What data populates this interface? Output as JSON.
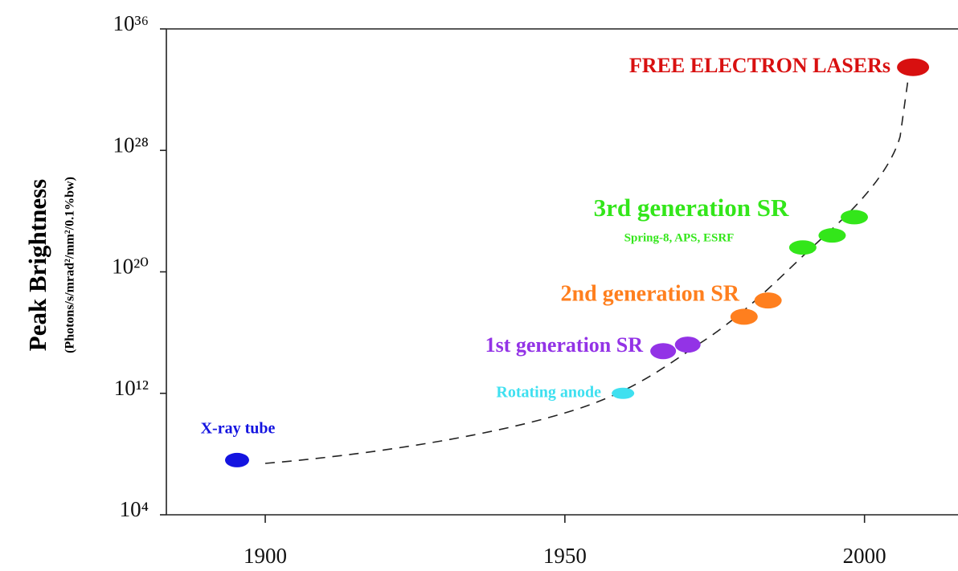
{
  "chart_data": {
    "type": "scatter",
    "ylabel": "Peak Brightness",
    "ylabel_units": "(Photons/s/mrad²/mm²/0.1%bw)",
    "log_y": true,
    "xlim": [
      1883.5,
      2015.6
    ],
    "xticks": [
      1900,
      1950,
      2000
    ],
    "ylim": [
      10000.0,
      1e+36
    ],
    "yticks": [
      {
        "value": 10000.0,
        "label": "10⁴"
      },
      {
        "value": 1000000000000.0,
        "label": "10¹²"
      },
      {
        "value": 1e+20,
        "label": "10²⁰"
      },
      {
        "value": 1e+28,
        "label": "10²⁸"
      },
      {
        "value": 1e+36,
        "label": "10³⁶"
      }
    ],
    "series": [
      {
        "name": "X-ray tube",
        "color": "#1414e0",
        "x": [
          1895.3
        ],
        "values": [
          40000000.0
        ]
      },
      {
        "name": "Rotating anode",
        "color": "#3fe0f0",
        "x": [
          1959.7
        ],
        "values": [
          1000000000000.0
        ]
      },
      {
        "name": "1st generation SR",
        "color": "#9333e6",
        "x": [
          1966.4,
          1970.5
        ],
        "values": [
          600000000000000.0,
          1600000000000000.0
        ]
      },
      {
        "name": "2nd generation SR",
        "color": "#ff7f1e",
        "x": [
          1979.9,
          1983.9
        ],
        "values": [
          1.1e+17,
          1.3e+18
        ]
      },
      {
        "name": "3rd generation SR",
        "color": "#33e61a",
        "x": [
          1989.7,
          1994.6,
          1998.3
        ],
        "values": [
          4e+21,
          2.5e+22,
          4e+23
        ]
      },
      {
        "name": "FREE ELECTRON LASERs",
        "color": "#d81010",
        "x": [
          2008.1
        ],
        "values": [
          3e+33
        ]
      }
    ],
    "annotations": [
      {
        "text": "Spring-8, APS, ESRF",
        "color": "#33e61a"
      }
    ]
  }
}
